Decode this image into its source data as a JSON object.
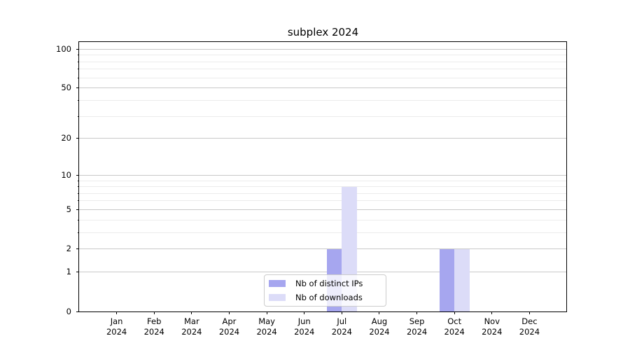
{
  "chart": {
    "title": "subplex 2024",
    "accent_colors": {
      "distinct_ips_bar": "#a6a6ef",
      "downloads_bar": "#dcdcf8",
      "major_gridline": "#c9c9c9",
      "minor_gridline": "#ececec"
    }
  },
  "chart_data": {
    "type": "bar",
    "title": "subplex 2024",
    "xlabel": "",
    "ylabel": "",
    "categories": [
      "Jan 2024",
      "Feb 2024",
      "Mar 2024",
      "Apr 2024",
      "May 2024",
      "Jun 2024",
      "Jul 2024",
      "Aug 2024",
      "Sep 2024",
      "Oct 2024",
      "Nov 2024",
      "Dec 2024"
    ],
    "series": [
      {
        "name": "Nb of distinct IPs",
        "color": "#a6a6ef",
        "values": [
          0,
          0,
          0,
          0,
          0,
          0,
          2,
          0,
          0,
          2,
          0,
          0
        ]
      },
      {
        "name": "Nb of downloads",
        "color": "#dcdcf8",
        "values": [
          0,
          0,
          0,
          0,
          0,
          0,
          8,
          0,
          0,
          2,
          0,
          0
        ]
      }
    ],
    "yscale": "log1p",
    "ylim": [
      0,
      114
    ],
    "y_major_ticks": [
      0,
      1,
      2,
      5,
      10,
      20,
      50,
      100
    ],
    "y_minor_ticks": [
      3,
      4,
      6,
      7,
      8,
      9,
      30,
      40,
      60,
      70,
      80,
      90
    ],
    "grid": true,
    "legend_position": "lower center inside"
  }
}
